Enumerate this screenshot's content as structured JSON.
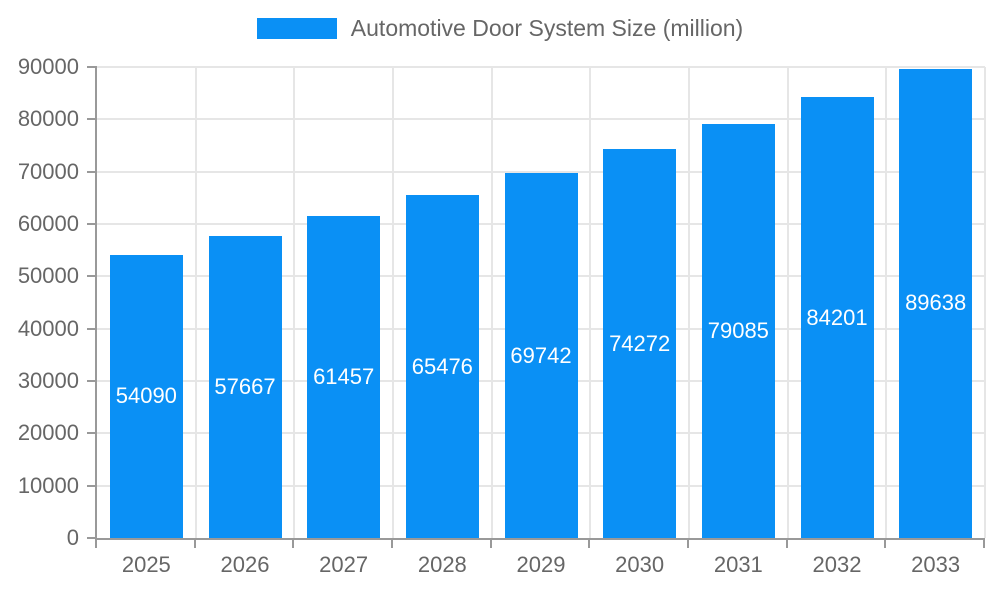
{
  "chart_data": {
    "type": "bar",
    "title": "Automotive Door System Size (million)",
    "categories": [
      "2025",
      "2026",
      "2027",
      "2028",
      "2029",
      "2030",
      "2031",
      "2032",
      "2033"
    ],
    "values": [
      54090,
      57667,
      61457,
      65476,
      69742,
      74272,
      79085,
      84201,
      89638
    ],
    "xlabel": "",
    "ylabel": "",
    "ylim": [
      0,
      90000
    ],
    "ytick_step": 10000,
    "grid": true,
    "legend_position": "top",
    "colors": {
      "bar": "#0a90f5",
      "value_label": "#ffffff",
      "grid_line": "#e6e6e6",
      "axis_line": "#999999",
      "tick_text": "#666666",
      "legend_text": "#666666"
    }
  }
}
